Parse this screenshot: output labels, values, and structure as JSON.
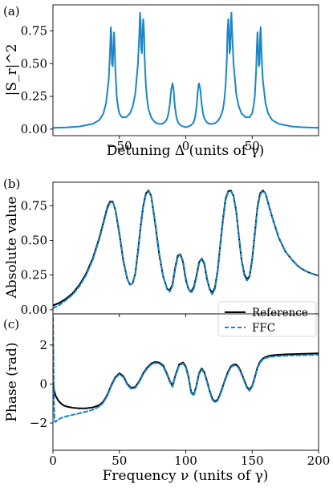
{
  "colors": {
    "blue": "#1a86c8",
    "black": "#000000"
  },
  "chart_data": [
    {
      "panel": "(a)",
      "type": "line",
      "xlabel": "Detuning Δ (units of γ)",
      "ylabel": "|S_r|^2",
      "xlim": [
        -100,
        100
      ],
      "ylim": [
        -0.05,
        0.95
      ],
      "xticks": [
        -50,
        0,
        50
      ],
      "yticks": [
        0.0,
        0.25,
        0.5,
        0.75
      ],
      "ytick_labels": [
        "0.00",
        "0.25",
        "0.50",
        "0.75"
      ],
      "grid": false,
      "series": [
        {
          "color": "#1a86c8",
          "style": "solid",
          "x": [
            -100,
            -90,
            -80,
            -70,
            -65,
            -62,
            -60,
            -58,
            -57,
            -56.4,
            -56,
            -55.6,
            -55,
            -54.4,
            -54,
            -53.5,
            -53,
            -52,
            -51,
            -50,
            -48,
            -45,
            -42,
            -40,
            -38,
            -36,
            -35,
            -34.4,
            -34,
            -33.6,
            -33,
            -32.4,
            -32,
            -31.4,
            -31,
            -30,
            -29,
            -28,
            -26,
            -24,
            -22,
            -20,
            -18,
            -16,
            -14,
            -13,
            -12,
            -11,
            -10,
            -9.5,
            -9,
            -8.5,
            -8,
            -7,
            -6,
            -5,
            -4,
            -2,
            0,
            2,
            4,
            5,
            6,
            7,
            8,
            8.5,
            9,
            9.5,
            10,
            11,
            12,
            13,
            14,
            16,
            18,
            20,
            22,
            24,
            26,
            28,
            29,
            30,
            31,
            31.4,
            32,
            32.4,
            33,
            33.6,
            34,
            34.4,
            35,
            36,
            38,
            40,
            42,
            45,
            48,
            50,
            51,
            52,
            53,
            53.5,
            54,
            54.4,
            55,
            55.6,
            56,
            56.4,
            57,
            58,
            60,
            62,
            65,
            70,
            80,
            90,
            100
          ],
          "y": [
            0.01,
            0.013,
            0.02,
            0.04,
            0.07,
            0.12,
            0.2,
            0.38,
            0.6,
            0.78,
            0.72,
            0.5,
            0.48,
            0.65,
            0.74,
            0.62,
            0.45,
            0.25,
            0.17,
            0.12,
            0.09,
            0.09,
            0.12,
            0.17,
            0.27,
            0.5,
            0.72,
            0.89,
            0.83,
            0.62,
            0.58,
            0.77,
            0.84,
            0.74,
            0.55,
            0.33,
            0.22,
            0.15,
            0.09,
            0.06,
            0.045,
            0.04,
            0.04,
            0.05,
            0.08,
            0.12,
            0.19,
            0.3,
            0.35,
            0.33,
            0.28,
            0.21,
            0.16,
            0.09,
            0.055,
            0.04,
            0.03,
            0.02,
            0.015,
            0.02,
            0.03,
            0.04,
            0.055,
            0.09,
            0.16,
            0.21,
            0.28,
            0.33,
            0.35,
            0.3,
            0.19,
            0.12,
            0.08,
            0.05,
            0.04,
            0.04,
            0.045,
            0.06,
            0.09,
            0.15,
            0.22,
            0.33,
            0.55,
            0.74,
            0.84,
            0.77,
            0.58,
            0.62,
            0.83,
            0.89,
            0.72,
            0.5,
            0.27,
            0.17,
            0.12,
            0.09,
            0.09,
            0.12,
            0.17,
            0.25,
            0.45,
            0.62,
            0.74,
            0.65,
            0.48,
            0.5,
            0.72,
            0.78,
            0.6,
            0.38,
            0.2,
            0.12,
            0.07,
            0.04,
            0.02,
            0.013,
            0.01
          ]
        }
      ]
    },
    {
      "panel": "(b)",
      "type": "line",
      "xlabel": "",
      "ylabel": "Absolute value",
      "xlim": [
        0,
        200
      ],
      "ylim": [
        -0.03,
        0.92
      ],
      "xticks": [
        0,
        50,
        100,
        150,
        200
      ],
      "yticks": [
        0.0,
        0.25,
        0.5,
        0.75
      ],
      "ytick_labels": [
        "0.00",
        "0.25",
        "0.50",
        "0.75"
      ],
      "grid": false,
      "legend": "bottom-right",
      "series": [
        {
          "name": "Reference",
          "color": "#000000",
          "style": "solid",
          "x": [
            0,
            5,
            10,
            15,
            20,
            25,
            30,
            35,
            38,
            41,
            43,
            45,
            47,
            50,
            53,
            56,
            58,
            60,
            62,
            64,
            66,
            68,
            70,
            72,
            74,
            77,
            80,
            83,
            86,
            88,
            90,
            92,
            94,
            96,
            98,
            100,
            102,
            104,
            106,
            108,
            110,
            112,
            114,
            116,
            118,
            120,
            122,
            124,
            126,
            128,
            130,
            132,
            134,
            136,
            138,
            140,
            142,
            144,
            146,
            148,
            150,
            152,
            154,
            156,
            158,
            160,
            165,
            170,
            175,
            180,
            185,
            190,
            195,
            200
          ],
          "y": [
            0.03,
            0.05,
            0.08,
            0.12,
            0.18,
            0.26,
            0.37,
            0.52,
            0.63,
            0.74,
            0.78,
            0.78,
            0.72,
            0.55,
            0.35,
            0.22,
            0.18,
            0.19,
            0.26,
            0.42,
            0.6,
            0.75,
            0.84,
            0.86,
            0.82,
            0.62,
            0.4,
            0.24,
            0.15,
            0.14,
            0.18,
            0.3,
            0.39,
            0.4,
            0.34,
            0.22,
            0.15,
            0.13,
            0.16,
            0.24,
            0.34,
            0.37,
            0.33,
            0.22,
            0.15,
            0.12,
            0.16,
            0.28,
            0.47,
            0.65,
            0.8,
            0.855,
            0.86,
            0.82,
            0.71,
            0.53,
            0.36,
            0.26,
            0.22,
            0.24,
            0.36,
            0.55,
            0.74,
            0.84,
            0.86,
            0.84,
            0.67,
            0.52,
            0.42,
            0.36,
            0.31,
            0.28,
            0.26,
            0.245
          ]
        },
        {
          "name": "FFC",
          "color": "#1a86c8",
          "style": "dashed",
          "x": [
            0,
            5,
            10,
            15,
            20,
            25,
            30,
            35,
            38,
            41,
            43,
            45,
            47,
            50,
            53,
            56,
            58,
            60,
            62,
            64,
            66,
            68,
            70,
            72,
            74,
            77,
            80,
            83,
            86,
            88,
            90,
            92,
            94,
            96,
            98,
            100,
            102,
            104,
            106,
            108,
            110,
            112,
            114,
            116,
            118,
            120,
            122,
            124,
            126,
            128,
            130,
            132,
            134,
            136,
            138,
            140,
            142,
            144,
            146,
            148,
            150,
            152,
            154,
            156,
            158,
            160,
            165,
            170,
            175,
            180,
            185,
            190,
            195,
            200
          ],
          "y": [
            0.01,
            0.035,
            0.07,
            0.11,
            0.17,
            0.25,
            0.36,
            0.51,
            0.62,
            0.73,
            0.77,
            0.78,
            0.72,
            0.56,
            0.36,
            0.22,
            0.18,
            0.19,
            0.26,
            0.41,
            0.59,
            0.74,
            0.83,
            0.855,
            0.82,
            0.63,
            0.41,
            0.24,
            0.15,
            0.13,
            0.17,
            0.29,
            0.38,
            0.4,
            0.35,
            0.23,
            0.15,
            0.12,
            0.15,
            0.23,
            0.33,
            0.37,
            0.34,
            0.23,
            0.14,
            0.11,
            0.15,
            0.27,
            0.46,
            0.64,
            0.79,
            0.85,
            0.855,
            0.82,
            0.71,
            0.53,
            0.36,
            0.25,
            0.21,
            0.23,
            0.35,
            0.54,
            0.73,
            0.83,
            0.855,
            0.84,
            0.67,
            0.52,
            0.42,
            0.36,
            0.31,
            0.28,
            0.26,
            0.245
          ]
        }
      ]
    },
    {
      "panel": "(c)",
      "type": "line",
      "xlabel": "Frequency ν (units of γ)",
      "ylabel": "Phase (rad)",
      "xlim": [
        0,
        200
      ],
      "ylim": [
        -3.4,
        3.6
      ],
      "xticks": [
        0,
        50,
        100,
        150,
        200
      ],
      "yticks": [
        -2,
        0,
        2
      ],
      "ytick_labels": [
        "−2",
        "0",
        "2"
      ],
      "grid": false,
      "series": [
        {
          "name": "Reference",
          "color": "#000000",
          "style": "solid",
          "x": [
            0,
            1,
            2,
            4,
            6,
            8,
            10,
            15,
            20,
            25,
            30,
            35,
            38,
            41,
            44,
            47,
            50,
            53,
            56,
            59,
            62,
            65,
            68,
            71,
            74,
            77,
            80,
            83,
            86,
            88,
            90,
            92,
            95,
            98,
            100,
            102,
            104,
            106,
            108,
            110,
            112,
            114,
            116,
            118,
            120,
            122,
            124,
            126,
            128,
            130,
            132,
            134,
            136,
            138,
            140,
            142,
            144,
            146,
            148,
            150,
            152,
            154,
            156,
            158,
            160,
            163,
            166,
            170,
            175,
            180,
            185,
            190,
            195,
            200
          ],
          "y": [
            0.0,
            -0.35,
            -0.6,
            -0.85,
            -1.0,
            -1.1,
            -1.15,
            -1.22,
            -1.25,
            -1.25,
            -1.2,
            -1.08,
            -0.9,
            -0.55,
            -0.05,
            0.35,
            0.55,
            0.4,
            0.0,
            -0.2,
            -0.15,
            0.15,
            0.55,
            0.85,
            1.05,
            1.13,
            1.1,
            0.95,
            0.5,
            0.15,
            -0.1,
            0.4,
            1.0,
            1.1,
            0.9,
            0.4,
            -0.4,
            -0.55,
            -0.1,
            0.55,
            0.8,
            0.6,
            0.15,
            -0.35,
            -0.75,
            -0.9,
            -0.8,
            -0.5,
            -0.1,
            0.3,
            0.65,
            0.9,
            1.0,
            1.0,
            0.85,
            0.55,
            0.2,
            -0.15,
            -0.3,
            -0.1,
            0.35,
            0.85,
            1.15,
            1.3,
            1.38,
            1.45,
            1.48,
            1.5,
            1.52,
            1.53,
            1.54,
            1.55,
            1.56,
            1.57
          ]
        },
        {
          "name": "FFC",
          "color": "#1a86c8",
          "style": "dashed",
          "x": [
            0,
            0.4,
            0.8,
            1.2,
            2,
            3,
            4,
            6,
            8,
            10,
            15,
            20,
            25,
            30,
            35,
            38,
            41,
            44,
            47,
            50,
            53,
            56,
            59,
            62,
            65,
            68,
            71,
            74,
            77,
            80,
            83,
            86,
            88,
            90,
            92,
            95,
            98,
            100,
            102,
            104,
            106,
            108,
            110,
            112,
            114,
            116,
            118,
            120,
            122,
            124,
            126,
            128,
            130,
            132,
            134,
            136,
            138,
            140,
            142,
            144,
            146,
            148,
            150,
            152,
            154,
            156,
            158,
            160,
            163,
            166,
            170,
            175,
            180,
            185,
            190,
            195,
            200
          ],
          "y": [
            3.4,
            1.0,
            -1.0,
            -1.9,
            -1.95,
            -1.88,
            -1.83,
            -1.75,
            -1.7,
            -1.66,
            -1.58,
            -1.5,
            -1.42,
            -1.32,
            -1.15,
            -0.95,
            -0.6,
            -0.1,
            0.3,
            0.5,
            0.35,
            -0.05,
            -0.25,
            -0.2,
            0.1,
            0.5,
            0.8,
            1.0,
            1.08,
            1.05,
            0.9,
            0.45,
            0.1,
            -0.15,
            0.35,
            0.95,
            1.05,
            0.85,
            0.35,
            -0.45,
            -0.6,
            -0.15,
            0.5,
            0.75,
            0.55,
            0.1,
            -0.4,
            -0.8,
            -0.95,
            -0.85,
            -0.55,
            -0.15,
            0.25,
            0.6,
            0.85,
            0.95,
            0.95,
            0.8,
            0.5,
            0.15,
            -0.2,
            -0.35,
            -0.15,
            0.3,
            0.8,
            1.1,
            1.25,
            1.33,
            1.38,
            1.41,
            1.43,
            1.45,
            1.46,
            1.47,
            1.48,
            1.49,
            1.5
          ]
        }
      ]
    }
  ]
}
